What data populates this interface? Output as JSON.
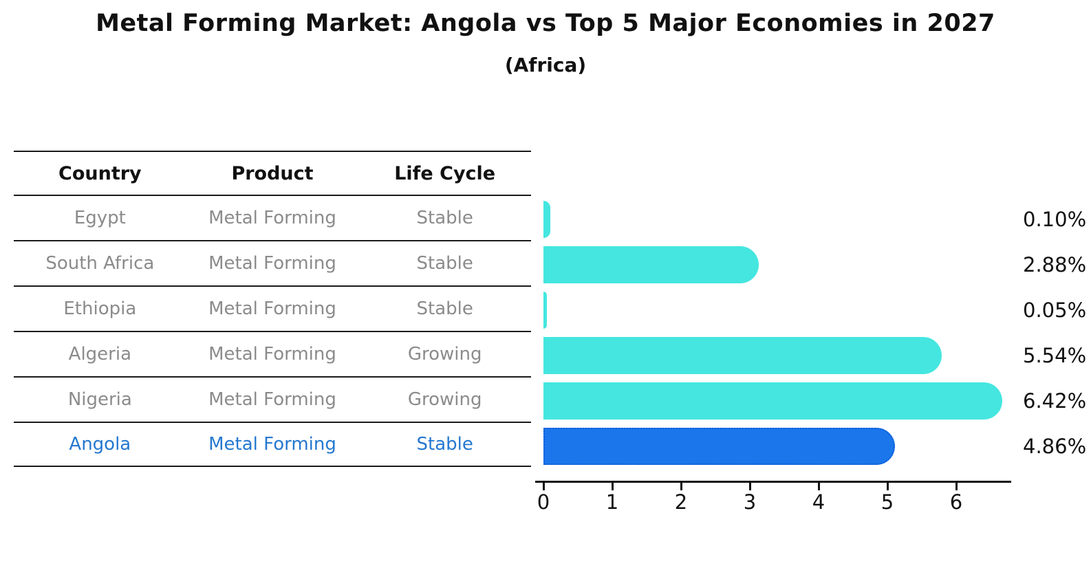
{
  "title": "Metal Forming Market: Angola vs Top 5 Major Economies in 2027",
  "subtitle": "(Africa)",
  "table": {
    "headers": [
      "Country",
      "Product",
      "Life Cycle"
    ],
    "rows": [
      {
        "country": "Egypt",
        "product": "Metal Forming",
        "life_cycle": "Stable"
      },
      {
        "country": "South Africa",
        "product": "Metal Forming",
        "life_cycle": "Stable"
      },
      {
        "country": "Ethiopia",
        "product": "Metal Forming",
        "life_cycle": "Stable"
      },
      {
        "country": "Algeria",
        "product": "Metal Forming",
        "life_cycle": "Growing"
      },
      {
        "country": "Nigeria",
        "product": "Metal Forming",
        "life_cycle": "Growing"
      },
      {
        "country": "Angola",
        "product": "Metal Forming",
        "life_cycle": "Stable"
      }
    ]
  },
  "chart_data": {
    "type": "bar",
    "orientation": "horizontal",
    "title": "Metal Forming Market: Angola vs Top 5 Major Economies in 2027",
    "subtitle": "(Africa)",
    "categories": [
      "Egypt",
      "South Africa",
      "Ethiopia",
      "Algeria",
      "Nigeria",
      "Angola"
    ],
    "values": [
      0.1,
      2.88,
      0.05,
      5.54,
      6.42,
      4.86
    ],
    "value_labels": [
      "0.10%",
      "2.88%",
      "0.05%",
      "5.54%",
      "6.42%",
      "4.86%"
    ],
    "x_ticks": [
      "0",
      "1",
      "2",
      "3",
      "4",
      "5",
      "6"
    ],
    "xlim": [
      0,
      6.8
    ],
    "grid": false,
    "legend": false,
    "bar_color": "#45e6e0",
    "highlight_color": "#1b75eb",
    "highlight_border_color": "#0c5fd8",
    "highlight_index": 5,
    "highlight_category": "Angola",
    "highlight_text_color": "#2478d0"
  }
}
